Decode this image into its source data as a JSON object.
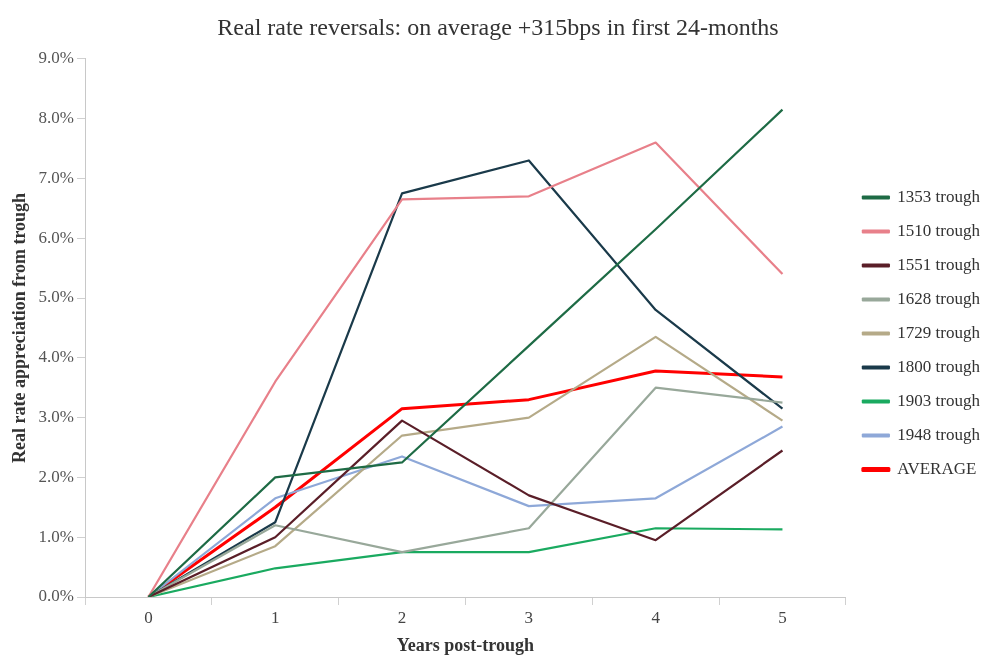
{
  "chart_data": {
    "type": "line",
    "title": "Real rate reversals: on average +315bps in first 24-months",
    "xlabel": "Years post-trough",
    "ylabel": "Real rate appreciation from trough",
    "categories": [
      "0",
      "1",
      "2",
      "3",
      "4",
      "5"
    ],
    "series": [
      {
        "name": "1353 trough",
        "color": "#1e6b45",
        "values": [
          0,
          2.0,
          2.25,
          4.2,
          6.15,
          8.15
        ]
      },
      {
        "name": "1510 trough",
        "color": "#e8808a",
        "values": [
          0,
          3.6,
          6.65,
          6.7,
          7.6,
          5.4
        ]
      },
      {
        "name": "1551 trough",
        "color": "#5a1e28",
        "values": [
          0,
          1.0,
          2.95,
          1.7,
          0.95,
          2.45
        ]
      },
      {
        "name": "1628 trough",
        "color": "#98a89a",
        "values": [
          0,
          1.2,
          0.75,
          1.15,
          3.5,
          3.25
        ]
      },
      {
        "name": "1729 trough",
        "color": "#b5aa88",
        "values": [
          0,
          0.85,
          2.7,
          3.0,
          4.35,
          2.95
        ]
      },
      {
        "name": "1800 trough",
        "color": "#1a3a4a",
        "values": [
          0,
          1.25,
          6.75,
          7.3,
          4.8,
          3.15
        ]
      },
      {
        "name": "1903 trough",
        "color": "#1aaa60",
        "values": [
          0,
          0.48,
          0.75,
          0.75,
          1.15,
          1.13
        ]
      },
      {
        "name": "1948 trough",
        "color": "#8ea8d8",
        "values": [
          0,
          1.65,
          2.35,
          1.52,
          1.65,
          2.85
        ]
      },
      {
        "name": "AVERAGE",
        "color": "#ff0000",
        "values": [
          0,
          1.5,
          3.15,
          3.3,
          3.78,
          3.68
        ]
      }
    ],
    "ylim": [
      0,
      9
    ],
    "yticks": [
      {
        "value": 0,
        "label": "0.0%"
      },
      {
        "value": 1,
        "label": "1.0%"
      },
      {
        "value": 2,
        "label": "2.0%"
      },
      {
        "value": 3,
        "label": "3.0%"
      },
      {
        "value": 4,
        "label": "4.0%"
      },
      {
        "value": 5,
        "label": "5.0%"
      },
      {
        "value": 6,
        "label": "6.0%"
      },
      {
        "value": 7,
        "label": "7.0%"
      },
      {
        "value": 8,
        "label": "8.0%"
      },
      {
        "value": 9,
        "label": "9.0%"
      }
    ],
    "grid": false,
    "legend": "right",
    "marker": "none",
    "line_style": "solid"
  }
}
